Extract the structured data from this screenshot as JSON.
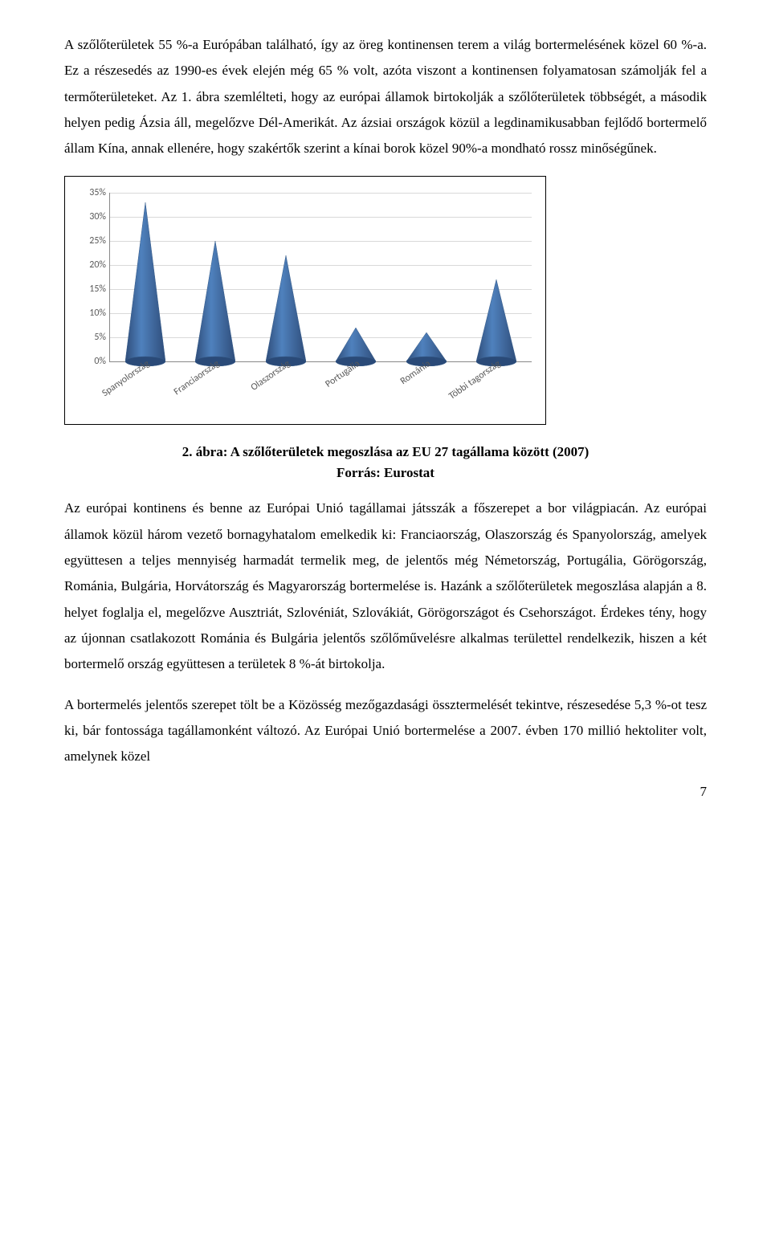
{
  "para1": "A szőlőterületek 55 %-a Európában található, így az öreg kontinensen terem a világ bortermelésének közel 60 %-a. Ez a részesedés az 1990-es évek elején még 65 % volt, azóta viszont a kontinensen folyamatosan számolják fel a termőterületeket. Az 1. ábra szemlélteti, hogy az európai államok birtokolják a szőlőterületek többségét, a második helyen pedig Ázsia áll, megelőzve Dél-Amerikát. Az ázsiai országok közül a legdinamikusabban fejlődő bortermelő állam Kína, annak ellenére, hogy szakértők szerint a kínai borok közel 90%-a mondható rossz minőségűnek.",
  "chart": {
    "type": "cone-bar",
    "categories": [
      "Spanyolország",
      "Franciaország",
      "Olaszország",
      "Portugália",
      "Románia",
      "Többi tagország"
    ],
    "values": [
      33,
      25,
      22,
      7,
      6,
      17
    ],
    "ylim": [
      0,
      35
    ],
    "ytick_step": 5,
    "y_suffix": "%",
    "cone_fill": "#4f81bd",
    "cone_edge": "#385d8a",
    "grid_color": "#d9d9d9",
    "axis_color": "#888888",
    "label_fontsize": 12,
    "label_color": "#595959",
    "cone_base_width": 50
  },
  "caption": "2. ábra: A szőlőterületek megoszlása az EU 27 tagállama között (2007)",
  "source": "Forrás: Eurostat",
  "para2": "Az európai kontinens és benne az Európai Unió tagállamai játsszák a főszerepet a bor világpiacán. Az európai államok közül három vezető bornagyhatalom emelkedik ki: Franciaország, Olaszország és Spanyolország, amelyek együttesen a teljes mennyiség harmadát termelik meg, de jelentős még Németország, Portugália, Görögország, Románia, Bulgária, Horvátország és Magyarország bortermelése is. Hazánk a szőlőterületek megoszlása alapján a 8. helyet foglalja el, megelőzve Ausztriát, Szlovéniát, Szlovákiát, Görögországot és Csehországot. Érdekes tény, hogy az újonnan csatlakozott Románia és Bulgária jelentős szőlőművelésre alkalmas területtel rendelkezik, hiszen a két bortermelő ország együttesen a területek 8 %-át birtokolja.",
  "para3": "A bortermelés jelentős szerepet tölt be a Közösség mezőgazdasági össztermelését tekintve, részesedése 5,3 %-ot tesz ki, bár fontossága tagállamonként változó. Az Európai Unió bortermelése a 2007. évben 170 millió hektoliter volt, amelynek közel",
  "page_number": "7"
}
